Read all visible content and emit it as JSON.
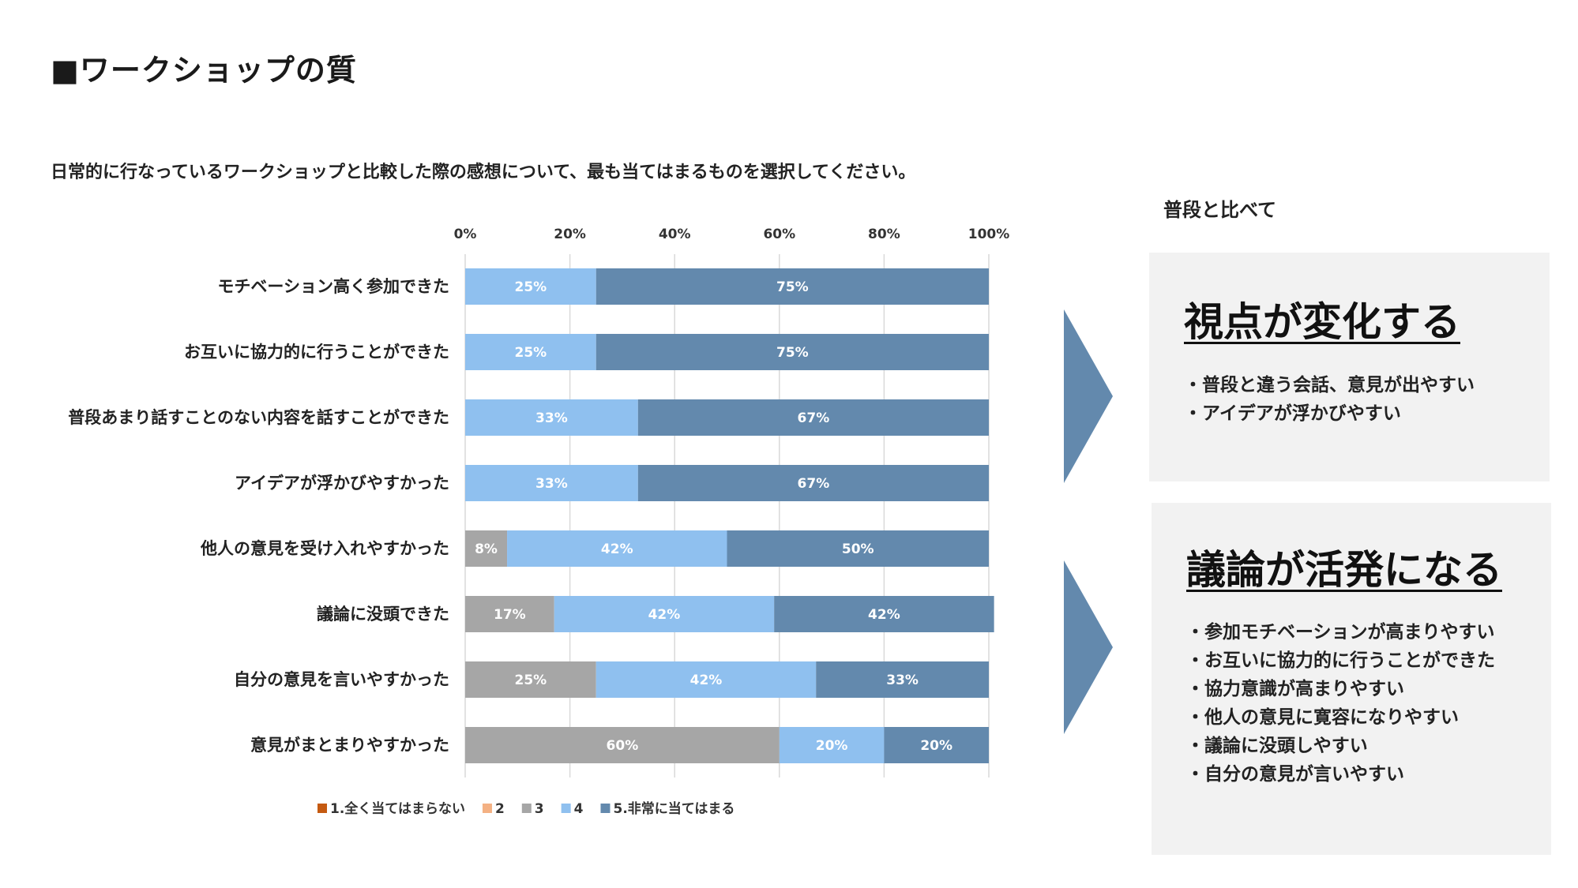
{
  "slide": {
    "title": "■ワークショップの質",
    "question": "日常的に行なっているワークショップと比較した際の感想について、最も当てはまるものを選択してください。"
  },
  "chart_data": {
    "type": "bar",
    "orientation": "horizontal",
    "stacked": "percent",
    "xlim": [
      0,
      100
    ],
    "x_ticks": [
      "0%",
      "20%",
      "40%",
      "60%",
      "80%",
      "100%"
    ],
    "grid": true,
    "legend_position": "bottom",
    "categories": [
      "モチベーション高く参加できた",
      "お互いに協力的に行うことができた",
      "普段あまり話すことのない内容を話すことができた",
      "アイデアが浮かびやすかった",
      "他人の意見を受け入れやすかった",
      "議論に没頭できた",
      "自分の意見を言いやすかった",
      "意見がまとまりやすかった"
    ],
    "series": [
      {
        "name": "1.全く当てはまらない",
        "color": "#c55a11",
        "values": [
          0,
          0,
          0,
          0,
          0,
          0,
          0,
          0
        ]
      },
      {
        "name": "2",
        "color": "#f4b183",
        "values": [
          0,
          0,
          0,
          0,
          0,
          0,
          0,
          0
        ]
      },
      {
        "name": "3",
        "color": "#a6a6a6",
        "values": [
          0,
          0,
          0,
          0,
          8,
          17,
          25,
          60
        ]
      },
      {
        "name": "4",
        "color": "#8fc0ef",
        "values": [
          25,
          25,
          33,
          33,
          42,
          42,
          42,
          20
        ]
      },
      {
        "name": "5.非常に当てはまる",
        "color": "#6389ad",
        "values": [
          75,
          75,
          67,
          67,
          50,
          42,
          33,
          20
        ]
      }
    ]
  },
  "compare": {
    "heading": "普段と比べて"
  },
  "panels": [
    {
      "title": "視点が変化する",
      "bullets": [
        "・普段と違う会話、意見が出やすい",
        "・アイデアが浮かびやすい"
      ]
    },
    {
      "title": "議論が活発になる",
      "bullets": [
        "・参加モチベーションが高まりやすい",
        "・お互いに協力的に行うことができた",
        "・協力意識が高まりやすい",
        "・他人の意見に寛容になりやすい",
        "・議論に没頭しやすい",
        "・自分の意見が言いやすい"
      ]
    }
  ],
  "colors": {
    "arrow": "#6389ad",
    "panel_bg": "#f2f2f2"
  }
}
